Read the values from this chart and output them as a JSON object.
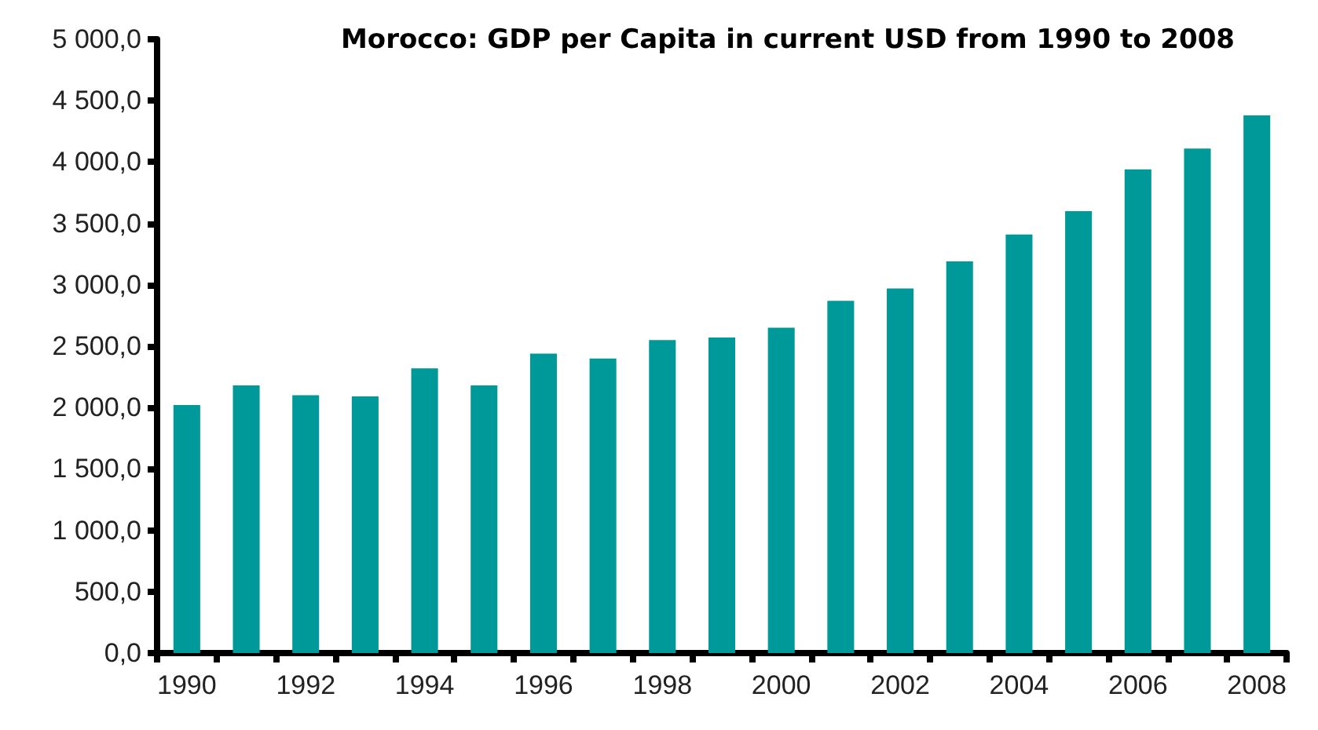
{
  "chart_data": {
    "type": "bar",
    "title": "Morocco: GDP per Capita in current USD from 1990 to 2008",
    "categories": [
      "1990",
      null,
      "1992",
      null,
      "1994",
      null,
      "1996",
      null,
      "1998",
      null,
      "2000",
      null,
      "2002",
      null,
      "2004",
      null,
      "2006",
      null,
      "2008"
    ],
    "values": [
      2020,
      2180,
      2100,
      2090,
      2320,
      2180,
      2440,
      2400,
      2550,
      2570,
      2650,
      2870,
      2970,
      3190,
      3410,
      3600,
      3940,
      4110,
      4380
    ],
    "color": "#009999",
    "ylim": [
      0,
      5000
    ],
    "yticks": [
      {
        "value": 0,
        "label": "0,0"
      },
      {
        "value": 500,
        "label": "500,0"
      },
      {
        "value": 1000,
        "label": "1 000,0"
      },
      {
        "value": 1500,
        "label": "1 500,0"
      },
      {
        "value": 2000,
        "label": "2 000,0"
      },
      {
        "value": 2500,
        "label": "2 500,0"
      },
      {
        "value": 3000,
        "label": "3 000,0"
      },
      {
        "value": 3500,
        "label": "3 500,0"
      },
      {
        "value": 4000,
        "label": "4 000,0"
      },
      {
        "value": 4500,
        "label": "4 500,0"
      },
      {
        "value": 5000,
        "label": "5 000,0"
      }
    ],
    "grid": false
  }
}
